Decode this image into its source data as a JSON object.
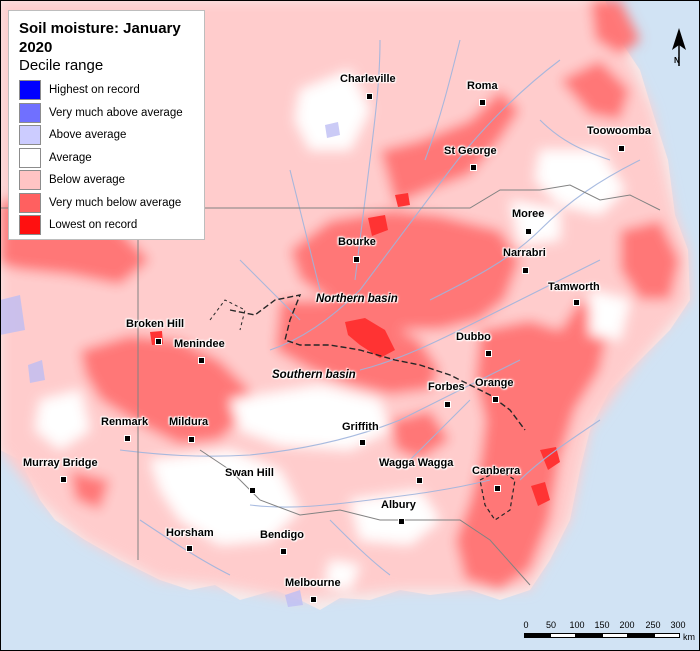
{
  "legend": {
    "title": "Soil moisture: January 2020",
    "subtitle": "Decile range",
    "items": [
      {
        "label": "Highest on record",
        "color": "#0000ff"
      },
      {
        "label": "Very much above average",
        "color": "#7070ff"
      },
      {
        "label": "Above average",
        "color": "#ccccff"
      },
      {
        "label": "Average",
        "color": "#ffffff"
      },
      {
        "label": "Below average",
        "color": "#ffc4c4"
      },
      {
        "label": "Very much below average",
        "color": "#ff6060"
      },
      {
        "label": "Lowest on record",
        "color": "#ff1010"
      }
    ]
  },
  "places": {
    "charleville": "Charleville",
    "roma": "Roma",
    "toowoomba": "Toowoomba",
    "st_george": "St George",
    "moree": "Moree",
    "bourke": "Bourke",
    "narrabri": "Narrabri",
    "tamworth": "Tamworth",
    "broken_hill": "Broken Hill",
    "menindee": "Menindee",
    "dubbo": "Dubbo",
    "orange": "Orange",
    "forbes": "Forbes",
    "renmark": "Renmark",
    "mildura": "Mildura",
    "griffith": "Griffith",
    "murray_bridge": "Murray Bridge",
    "swan_hill": "Swan Hill",
    "wagga_wagga": "Wagga Wagga",
    "canberra": "Canberra",
    "albury": "Albury",
    "horsham": "Horsham",
    "bendigo": "Bendigo",
    "melbourne": "Melbourne"
  },
  "basins": {
    "northern": "Northern basin",
    "southern": "Southern basin"
  },
  "north_arrow": "N",
  "scale_bar": {
    "ticks": [
      "0",
      "50",
      "100",
      "150",
      "200",
      "250",
      "300"
    ],
    "unit": "km"
  },
  "colors": {
    "ocean": "#c9def2",
    "land_outside": "#eeeeee",
    "river": "#8fa8d8"
  }
}
